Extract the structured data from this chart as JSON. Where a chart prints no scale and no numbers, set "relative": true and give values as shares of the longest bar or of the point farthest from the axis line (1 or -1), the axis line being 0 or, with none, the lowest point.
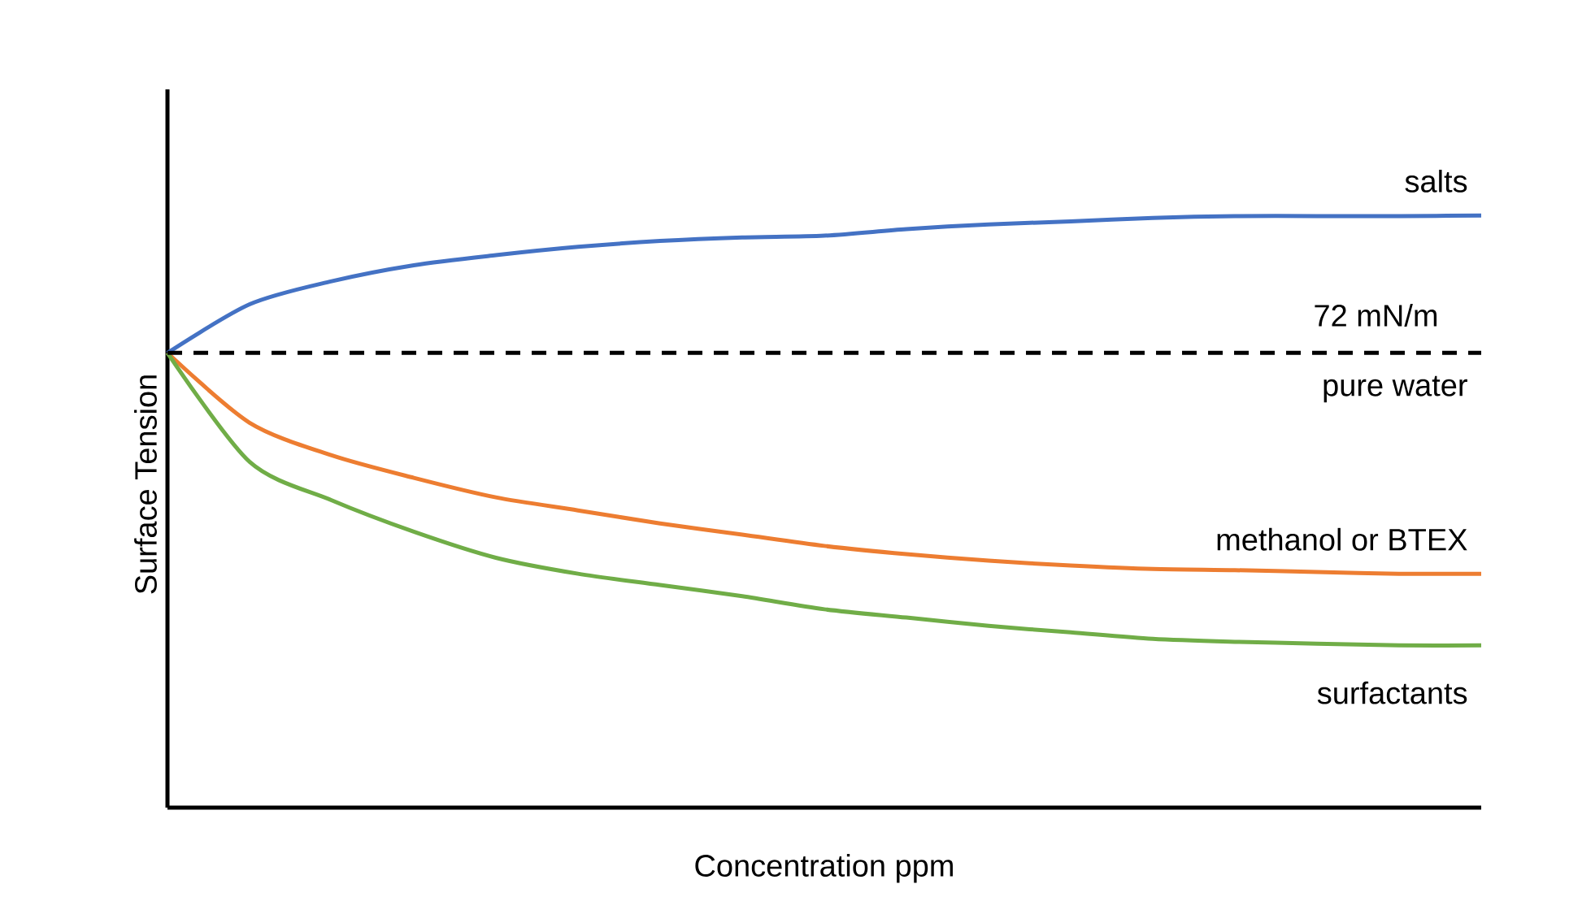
{
  "chart_data": {
    "type": "line",
    "relative": true,
    "xlabel": "Concentration ppm",
    "ylabel": "Surface Tension",
    "categories": [
      null,
      null,
      null,
      null,
      null,
      null,
      null,
      null,
      null,
      null,
      null,
      null,
      null,
      null,
      null,
      null,
      null
    ],
    "series": [
      {
        "name": "salts",
        "color": "#4472c4",
        "values": [
          0.768,
          0.85,
          0.889,
          0.916,
          0.933,
          0.947,
          0.957,
          0.963,
          0.966,
          0.977,
          0.985,
          0.99,
          0.996,
          0.999,
          0.999,
          0.999,
          1
        ]
      },
      {
        "name": "methanol or BTEX",
        "color": "#ed7d31",
        "values": [
          0.768,
          0.65,
          0.595,
          0.557,
          0.524,
          0.502,
          0.48,
          0.461,
          0.442,
          0.428,
          0.417,
          0.409,
          0.403,
          0.401,
          0.398,
          0.395,
          0.395
        ]
      },
      {
        "name": "surfactants",
        "color": "#70ad47",
        "values": [
          0.768,
          0.584,
          0.519,
          0.466,
          0.422,
          0.395,
          0.376,
          0.357,
          0.335,
          0.321,
          0.307,
          0.296,
          0.285,
          0.28,
          0.277,
          0.274,
          0.274
        ]
      }
    ],
    "ref_lines": [
      {
        "axis": "y",
        "value": 0.768,
        "label": "72 mN/m",
        "color": "#000000",
        "line_style": "dashed"
      }
    ],
    "annotations": [
      "pure water"
    ],
    "legend": false,
    "marker": "none",
    "line_style": "solid"
  }
}
